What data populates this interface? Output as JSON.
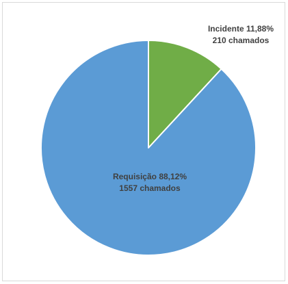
{
  "chart_data": {
    "type": "pie",
    "title": "",
    "slices": [
      {
        "category": "Incidente",
        "percent_label": "11,88%",
        "percent": 11.88,
        "count": 210,
        "count_label": "210 chamados",
        "color": "#70ad47"
      },
      {
        "category": "Requisição",
        "percent_label": "88,12%",
        "percent": 88.12,
        "count": 1557,
        "count_label": "1557 chamados",
        "color": "#5b9bd5"
      }
    ],
    "legend": "none"
  }
}
